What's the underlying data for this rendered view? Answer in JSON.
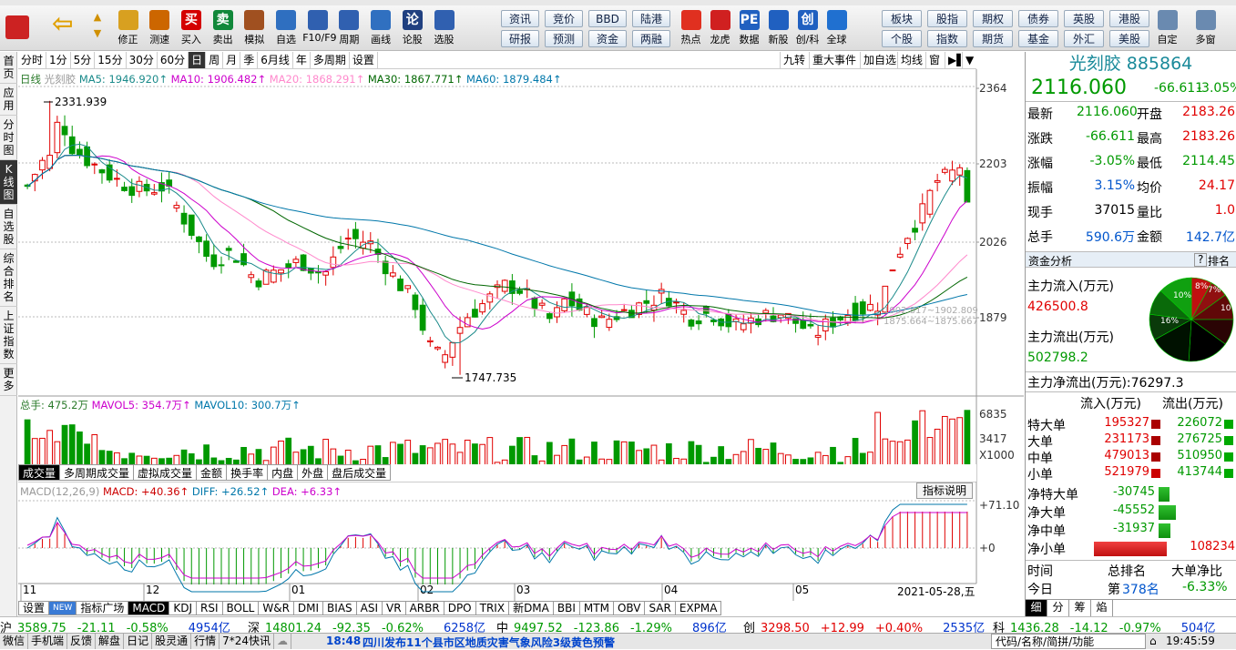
{
  "toolbar": {
    "buttons": [
      {
        "label": "修正",
        "icon": "up-down-arrows-icon",
        "color": "#d8a020"
      },
      {
        "label": "测速",
        "icon": "speedometer-icon",
        "color": "#cc6600"
      },
      {
        "label": "买入",
        "icon": "buy-icon",
        "color": "#d40000"
      },
      {
        "label": "卖出",
        "icon": "sell-icon",
        "color": "#11883a"
      },
      {
        "label": "模拟",
        "icon": "hammer-icon",
        "color": "#a05020"
      },
      {
        "label": "自选",
        "icon": "star-folder-icon",
        "color": "#2f6fc0"
      },
      {
        "label": "F10/F9",
        "icon": "f10-icon",
        "color": "#3060b0"
      },
      {
        "label": "周期",
        "icon": "clock-icon",
        "color": "#3060b0"
      },
      {
        "label": "画线",
        "icon": "pencil-icon",
        "color": "#3070c0"
      },
      {
        "label": "论股",
        "icon": "discuss-icon",
        "color": "#204080"
      },
      {
        "label": "选股",
        "icon": "search-chart-icon",
        "color": "#3060b0"
      }
    ],
    "buy_glyph": "买",
    "sell_glyph": "卖",
    "discuss_glyph": "论",
    "quick": [
      [
        "资讯",
        "竞价",
        "BBD",
        "陆港"
      ],
      [
        "研报",
        "预测",
        "资金",
        "两融"
      ]
    ],
    "extra": [
      {
        "label": "热点",
        "icon": "hot-icon",
        "color": "#e03020"
      },
      {
        "label": "龙虎",
        "icon": "dragon-tiger-icon",
        "color": "#d02020"
      },
      {
        "label": "数据",
        "icon": "pe-icon",
        "color": "#2060c0"
      },
      {
        "label": "新股",
        "icon": "new-stock-icon",
        "color": "#2060c0"
      },
      {
        "label": "创/科",
        "icon": "chuang-icon",
        "color": "#2060c0"
      },
      {
        "label": "全球",
        "icon": "globe-icon",
        "color": "#2070d0"
      }
    ],
    "pe_glyph": "PE",
    "chuang_glyph": "创",
    "quick2": [
      [
        "板块",
        "股指",
        "期权",
        "债券",
        "英股",
        "港股"
      ],
      [
        "个股",
        "指数",
        "期货",
        "基金",
        "外汇",
        "美股"
      ]
    ],
    "right": [
      {
        "label": "自定",
        "icon": "edit-icon"
      },
      {
        "label": "多窗",
        "icon": "multiwindow-icon"
      }
    ]
  },
  "leftnav": [
    "首页",
    "应用",
    "分时图",
    "K线图",
    "自选股",
    "综合排名",
    "上证指数",
    "更多"
  ],
  "period": {
    "tabs": [
      "分时",
      "1分",
      "5分",
      "15分",
      "30分",
      "60分",
      "日",
      "周",
      "月",
      "季",
      "6月线",
      "年",
      "多周期",
      "设置"
    ],
    "active": "日",
    "right": [
      "九转",
      "重大事件",
      "加自选",
      "均线",
      "窗"
    ]
  },
  "legend": {
    "kline": "日线",
    "name": "光刻胶",
    "ma5": "MA5: 1946.920↑",
    "ma10": "MA10: 1906.482↑",
    "ma20": "MA20: 1868.291↑",
    "ma30": "MA30: 1867.771↑",
    "ma60": "MA60: 1879.484↑",
    "vol": "总手: 475.2万",
    "mavol5": "MAVOL5: 354.7万↑",
    "mavol10": "MAVOL10: 300.7万↑",
    "macd_name": "MACD(12,26,9)",
    "macd": "MACD: +40.36↑",
    "diff": "DIFF: +26.52↑",
    "dea": "DEA: +6.33↑",
    "help": "指标说明"
  },
  "axis": {
    "price": [
      "2364",
      "2203",
      "2026",
      "1879"
    ],
    "vol": [
      "6835",
      "3417",
      "X1000"
    ],
    "macd": [
      "+71.10",
      "+0"
    ],
    "months": [
      "11",
      "12",
      "01",
      "02",
      "03",
      "04",
      "05"
    ],
    "date": "2021-05-28,五",
    "hi": "2331.939",
    "lo": "1747.735",
    "range1": "1902.817~1902.809",
    "range2": "1875.664~1875.667"
  },
  "indtabs": [
    "成交量",
    "多周期成交量",
    "虚拟成交量",
    "金额",
    "换手率",
    "内盘",
    "外盘",
    "盘后成交量"
  ],
  "bottabs": [
    "设置",
    "NEW",
    "指标广场",
    "MACD",
    "KDJ",
    "RSI",
    "BOLL",
    "W&R",
    "DMI",
    "BIAS",
    "ASI",
    "VR",
    "ARBR",
    "DPO",
    "TRIX",
    "新DMA",
    "BBI",
    "MTM",
    "OBV",
    "SAR",
    "EXPMA"
  ],
  "quote": {
    "title": "光刻胶 885864",
    "price": "2116.060",
    "chg": "-66.611",
    "pct": "-3.05%",
    "rows": [
      [
        "最新",
        "2116.060",
        "开盘",
        "2183.26"
      ],
      [
        "涨跌",
        "-66.611",
        "最高",
        "2183.26"
      ],
      [
        "涨幅",
        "-3.05%",
        "最低",
        "2114.45"
      ],
      [
        "振幅",
        "3.15%",
        "均价",
        "24.17"
      ],
      [
        "现手",
        "37015",
        "量比",
        "1.0"
      ],
      [
        "总手",
        "590.6万",
        "金额",
        "142.7亿"
      ]
    ]
  },
  "funds": {
    "title": "资金分析",
    "tab": "排名",
    "q": "?",
    "in_label": "主力流入(万元)",
    "in": "426500.8",
    "out_label": "主力流出(万元)",
    "out": "502798.2",
    "net": "主力净流出(万元):76297.3",
    "pie": [
      "8%",
      "7%",
      "10%",
      "10%",
      "16%"
    ],
    "head": [
      "流入(万元)",
      "流出(万元)"
    ],
    "rows": [
      [
        "特大单",
        "195327",
        "226072"
      ],
      [
        "大单",
        "231173",
        "276725"
      ],
      [
        "中单",
        "479013",
        "510950"
      ],
      [
        "小单",
        "521979",
        "413744"
      ]
    ],
    "net_rows": [
      [
        "净特大单",
        "-30745"
      ],
      [
        "净大单",
        "-45552"
      ],
      [
        "净中单",
        "-31937"
      ],
      [
        "净小单",
        "108234"
      ]
    ],
    "net_vals": [
      -30745,
      -45552,
      -31937,
      108234
    ],
    "rank_head": [
      "时间",
      "总排名",
      "大单净比"
    ],
    "rank_row": [
      "今日",
      "第",
      "378名",
      "-6.33%"
    ],
    "tabs": [
      "细",
      "分",
      "筹",
      "焰"
    ]
  },
  "ticker": [
    [
      "沪",
      "3589.75",
      "-21.11",
      "-0.58%",
      "4954亿"
    ],
    [
      "深",
      "14801.24",
      "-92.35",
      "-0.62%",
      "6258亿"
    ],
    [
      "中",
      "9497.52",
      "-123.86",
      "-1.29%",
      "896亿"
    ],
    [
      "创",
      "3298.50",
      "+12.99",
      "+0.40%",
      "2535亿"
    ],
    [
      "科",
      "1436.28",
      "-14.12",
      "-0.97%",
      "504亿"
    ]
  ],
  "status": {
    "items": [
      "微信",
      "手机端",
      "反馈",
      "解盘",
      "日记",
      "股灵通",
      "行情",
      "7*24快讯"
    ],
    "news_time": "18:48",
    "news": "四川发布11个县市区地质灾害气象风险3级黄色预警",
    "search": "代码/名称/简拼/功能",
    "clock": "19:45:59"
  }
}
